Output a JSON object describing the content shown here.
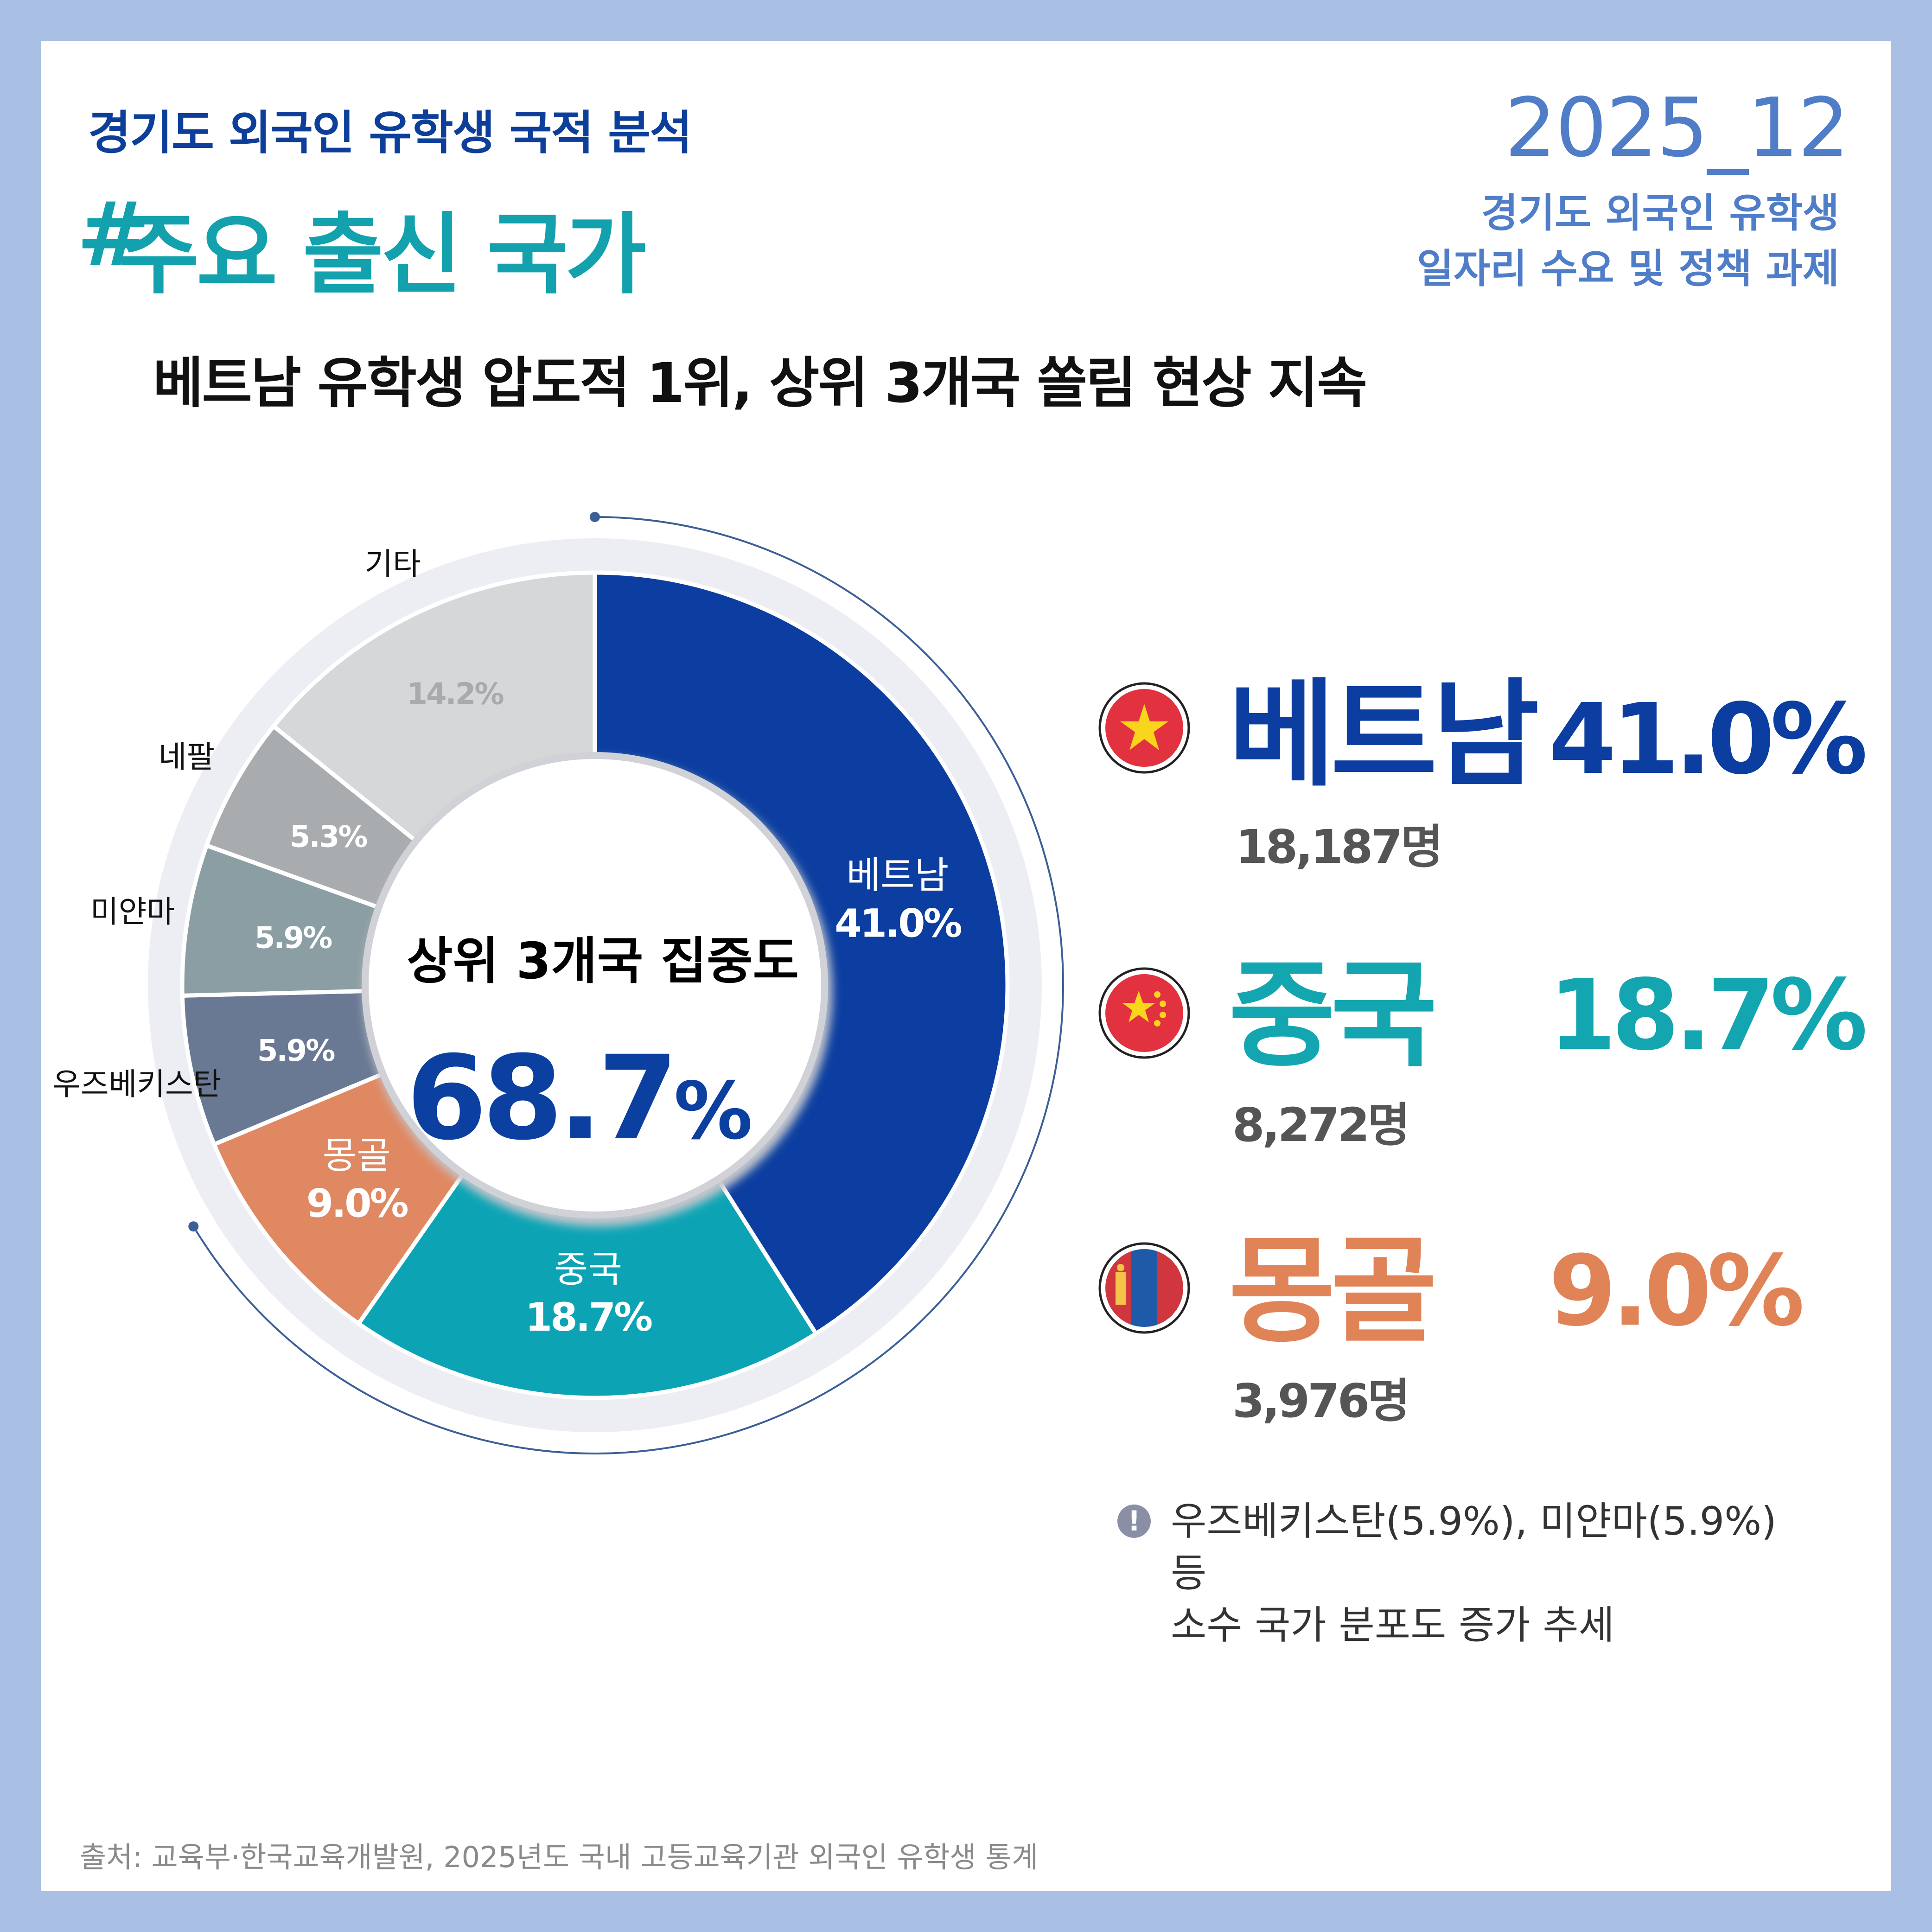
{
  "header": {
    "subtitle": "경기도 외국인 유학생 국적 분석",
    "hash": "#",
    "title": "주요 출신 국가",
    "date": "2025_12",
    "report_line1": "경기도 외국인 유학생",
    "report_line2": "일자리 수요 및 정책 과제"
  },
  "headline": "베트남 유학생 압도적 1위, 상위 3개국 쏠림 현상 지속",
  "center": {
    "label": "상위 3개국 집중도",
    "value": "68.7",
    "unit": "%"
  },
  "chart_data": {
    "type": "pie",
    "style": "donut",
    "categories": [
      "베트남",
      "중국",
      "몽골",
      "우즈베키스탄",
      "미얀마",
      "네팔",
      "기타"
    ],
    "values": [
      41.0,
      18.7,
      9.0,
      5.9,
      5.9,
      5.3,
      14.2
    ],
    "value_labels": [
      "41.0%",
      "18.7%",
      "9.0%",
      "5.9%",
      "5.9%",
      "5.3%",
      "14.2%"
    ],
    "colors": [
      "#0b3ea0",
      "#0ca4b5",
      "#e08861",
      "#6a7993",
      "#8b9ea3",
      "#a9acae",
      "#d6d7d9"
    ],
    "label_colors": [
      "#ffffff",
      "#ffffff",
      "#ffffff",
      "#ffffff",
      "#ffffff",
      "#ffffff",
      "#a9aaab"
    ],
    "title": "상위 3개국 집중도 68.7%"
  },
  "countries": [
    {
      "name": "베트남",
      "pct": "41.0%",
      "count": "18,187명",
      "color": "#0b3ea0"
    },
    {
      "name": "중국",
      "pct": "18.7%",
      "count": "8,272명",
      "color": "#13a6b1"
    },
    {
      "name": "몽골",
      "pct": "9.0%",
      "count": "3,976명",
      "color": "#e08458"
    }
  ],
  "note": {
    "icon": "!",
    "line1": "우즈베키스탄(5.9%), 미얀마(5.9%) 등",
    "line2": "소수 국가 분포도 증가 추세"
  },
  "source": "출처: 교육부·한국교육개발원,  2025년도 국내 고등교육기관 외국인 유학생 통계"
}
